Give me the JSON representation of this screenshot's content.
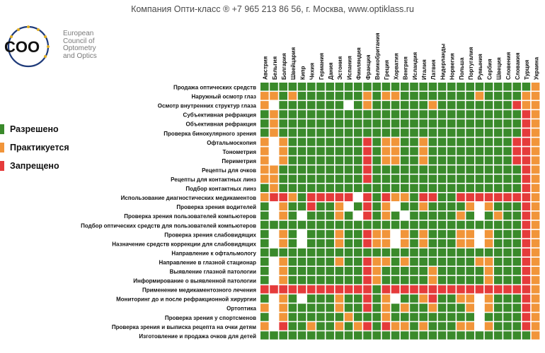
{
  "header": {
    "text": "Компания Опти-класс ® +7 965 213 86 56, г. Москва, www.optiklass.ru"
  },
  "logo": {
    "mark": "COO",
    "lines": [
      "European",
      "Council of",
      "Optometry",
      "and Optics"
    ]
  },
  "legend": [
    {
      "label": "Разрешено",
      "color": "#3a8a2b"
    },
    {
      "label": "Практикуется",
      "color": "#f1953a"
    },
    {
      "label": "Запрещено",
      "color": "#e53b3b"
    }
  ],
  "chart_data": {
    "type": "heatmap",
    "states": {
      "G": "Разрешено",
      "O": "Практикуется",
      "R": "Запрещено",
      "W": ""
    },
    "colors": {
      "G": "#3a8a2b",
      "O": "#f1953a",
      "R": "#e53b3b",
      "W": "#ffffff"
    },
    "columns": [
      "Австрия",
      "Бельгия",
      "Болгария",
      "Швейцария",
      "Кипр",
      "Чехия",
      "Германия",
      "Дания",
      "Эстония",
      "Испания",
      "Финляндия",
      "Франция",
      "Великобритания",
      "Греция",
      "Хорватия",
      "Венгрия",
      "Исландия",
      "Италия",
      "Латвия",
      "Нидерланды",
      "Норвегия",
      "Польша",
      "Португалия",
      "Румыния",
      "Сербия",
      "Швеция",
      "Словения",
      "Словакия",
      "Турция",
      "Украина"
    ],
    "rows": [
      {
        "label": "Продажа оптических средств",
        "cells": "GGGGGGGGGGGGGGGGGGGGGGGGGGGGGO"
      },
      {
        "label": "Наружный осмотр глаз",
        "cells": "OOGOGGGGGGGOGOOGGGGGGGGOGGGGOO"
      },
      {
        "label": "Осмотр внутренних структур глаза",
        "cells": "OWGGGGGGGWGOGGGGGGOGGGGGGGGROO"
      },
      {
        "label": "Субъективная рефракция",
        "cells": "GOGGGGGGGGGGGGGGGGGGGGGGGGGGRO"
      },
      {
        "label": "Объективная рефракция",
        "cells": "GOGGGGGGGGGGGGGGGGGGGGGGGGGGRO"
      },
      {
        "label": "Проверка бинокулярного зрения",
        "cells": "GOGGGGGGGGGGGGGGGGGGGGGGGGGGRO"
      },
      {
        "label": "Офтальмоскопия",
        "cells": "OWOGGGGGGGGRGOOGGOGGGGGGGGGRRO"
      },
      {
        "label": "Тонометрия",
        "cells": "OWOGGGGGGGGRGOOGGOGGGGGGGGGRRO"
      },
      {
        "label": "Периметрия",
        "cells": "OWOGGGGGGGGRGOOGGOGGGGGGGGGRRO"
      },
      {
        "label": "Рецепты для очков",
        "cells": "OOGGGGGGGGGRGGGGGGGGGGGGGGGGRO"
      },
      {
        "label": "Рецепты для контактных линз",
        "cells": "OOGGGGGGGGGRGGGGGGGGGGGGGGGGRO"
      },
      {
        "label": "Подбор контактных линз",
        "cells": "GOGGGGGGGGGGGGGGGGGGGGGGGGGGRO"
      },
      {
        "label": "Использование диагностических медикаментов",
        "cells": "ORROGRRRRRWRGROOGRRGGRRRRRRRRO"
      },
      {
        "label": "Проверка зрения водителей",
        "cells": "GWOGGRGGOWGRGOWGGOGGGGOWOGGGRO"
      },
      {
        "label": "Проверка зрения пользователей компьютеров",
        "cells": "GWOGWGGGOGWRGOGWGGGGGOGWGOGGRO"
      },
      {
        "label": "Подбор оптических средств для пользователей компьютеров",
        "cells": "GGGGGGGGGGGGGGGGGGGGGGGGGGGGRO"
      },
      {
        "label": "Проверка зрения слабовидящих",
        "cells": "GWOGWGGGOGGROOWOGOGGGOOWOGGGRO"
      },
      {
        "label": "Назначение средств коррекции для слабовидящих",
        "cells": "GWOGWGGGOGGROOWOGOGGGOOWOGGGRO"
      },
      {
        "label": "Направление к офтальмологу",
        "cells": "GGGGGGGGGGGGGGGGGGGGGGGGGGGGRO"
      },
      {
        "label": "Направление в глазной стационар",
        "cells": "GWOGGGGGOGGROOGOGGGGGGGOOGGGRO"
      },
      {
        "label": "Выявление глазной патологии",
        "cells": "GWOGGGGGGGGROGGGGGOGGGGGOGGGRO"
      },
      {
        "label": "Информирование о выявленной патологии",
        "cells": "GWOGGGGGGGGROGGGGGOGGGGGOGGGRO"
      },
      {
        "label": "Применение медикаментозного лечения",
        "cells": "RRRRRRRRRRRRGRRRRRRRRRRRRRRRRO"
      },
      {
        "label": "Мониторинг до и после рефракционной хирургии",
        "cells": "GWOGWGGGOGGRGOWGGORGGOOWOGGGRO"
      },
      {
        "label": "Ортоптика",
        "cells": "OWOGGGGGOGGRGOGOGGOGGGOWOGGGRO"
      },
      {
        "label": "Проверка зрения у спортсменов",
        "cells": "GWOGGGGGGOGGGOGGGGGGGGGWGGGGRO"
      },
      {
        "label": "Проверка зрения и выписка рецепта на очки детям",
        "cells": "OWRGGOGGOGORGROOGOGGGOOWOGGGRO"
      },
      {
        "label": "Изготовление и продажа очков для детей",
        "cells": "GGGGGGGGGGGGGGGGGGGGGGGGGGGGGO"
      }
    ]
  }
}
